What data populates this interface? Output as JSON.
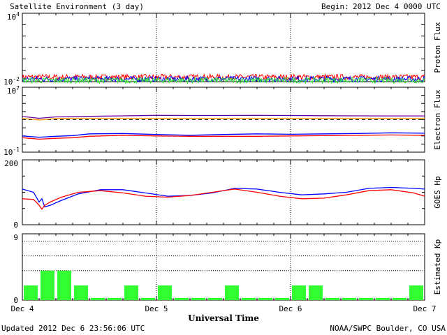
{
  "header": {
    "title": "Satellite Environment (3 day)",
    "begin_label": "Begin:",
    "begin_value": "2012 Dec 4 0000 UTC"
  },
  "footer": {
    "updated": "Updated 2012 Dec  6 23:56:06 UTC",
    "source": "NOAA/SWPC Boulder, CO USA"
  },
  "colors": {
    "red": "#ff0000",
    "blue": "#0000ff",
    "green": "#33dd33",
    "purple": "#660099",
    "orange": "#ff9900",
    "kp_bar": "#33ff33"
  },
  "chart_data": [
    {
      "type": "line",
      "ylabel": "Proton Flux",
      "yscale": "log",
      "ylim": [
        0.01,
        10000
      ],
      "ytick_labels": {
        "top": "10",
        "top_exp": "4",
        "bottom": "10",
        "bottom_exp": "-2"
      },
      "threshold": 10,
      "series": [
        {
          "color": "red",
          "level": 0.025
        },
        {
          "color": "blue",
          "level": 0.017
        },
        {
          "color": "green",
          "level": 0.013
        }
      ]
    },
    {
      "type": "line",
      "ylabel": "Electron Flux",
      "yscale": "log",
      "ylim": [
        0.1,
        10000000
      ],
      "ytick_labels": {
        "top": "10",
        "top_exp": "7",
        "bottom": "10",
        "bottom_exp": "-1"
      },
      "threshold": 1000,
      "x": [
        0,
        3,
        6,
        9,
        12,
        18,
        24,
        30,
        36,
        42,
        48,
        54,
        60,
        66,
        72
      ],
      "series": [
        {
          "color": "purple",
          "values": [
            2500,
            1500,
            2200,
            2300,
            2600,
            3000,
            3400,
            3300,
            3300,
            3400,
            3300,
            3100,
            3000,
            2900,
            2900
          ]
        },
        {
          "color": "orange",
          "values": [
            1500,
            900,
            1400,
            1500,
            1500,
            1500,
            1500,
            1500,
            1500,
            1500,
            1500,
            1500,
            1500,
            1500,
            1500
          ]
        },
        {
          "color": "blue",
          "values": [
            10,
            7,
            9,
            11,
            18,
            20,
            15,
            12,
            15,
            18,
            16,
            18,
            20,
            24,
            22
          ]
        },
        {
          "color": "red",
          "values": [
            6,
            4,
            5,
            6,
            9,
            12,
            10,
            9,
            9,
            9,
            10,
            11,
            12,
            13,
            12
          ]
        }
      ]
    },
    {
      "type": "line",
      "ylabel": "GOES Hp",
      "ylim": [
        0,
        200
      ],
      "yticks": [
        "200",
        "0"
      ],
      "x": [
        0,
        2,
        3,
        3.5,
        4,
        5,
        7,
        10,
        14,
        18,
        22,
        26,
        30,
        34,
        38,
        42,
        46,
        50,
        54,
        58,
        62,
        66,
        70,
        72
      ],
      "series": [
        {
          "color": "blue",
          "values": [
            110,
            100,
            70,
            80,
            55,
            60,
            75,
            95,
            108,
            108,
            98,
            88,
            90,
            98,
            112,
            110,
            100,
            92,
            95,
            100,
            112,
            115,
            112,
            110
          ]
        },
        {
          "color": "red",
          "values": [
            80,
            78,
            60,
            48,
            60,
            70,
            85,
            100,
            105,
            98,
            88,
            85,
            90,
            100,
            110,
            100,
            88,
            80,
            82,
            92,
            105,
            108,
            98,
            88
          ]
        }
      ]
    },
    {
      "type": "bar",
      "ylabel": "Estimated Kp",
      "ylim": [
        0,
        9
      ],
      "yticks": [
        "9",
        "0"
      ],
      "x_start_hours": [
        0,
        3,
        6,
        9,
        12,
        15,
        18,
        21,
        24,
        27,
        30,
        33,
        36,
        39,
        42,
        45,
        48,
        51,
        54,
        57,
        60,
        63,
        66,
        69
      ],
      "values": [
        2,
        4,
        4,
        2,
        0.3,
        0.3,
        2,
        0.3,
        2,
        0.3,
        0.3,
        0.3,
        2,
        0.3,
        0.3,
        0.3,
        2,
        2,
        0.3,
        0.3,
        0.3,
        0.3,
        0.3,
        2
      ]
    }
  ],
  "xaxis": {
    "title": "Universal Time",
    "ticks": [
      "Dec 4",
      "Dec 5",
      "Dec 6",
      "Dec 7"
    ]
  }
}
